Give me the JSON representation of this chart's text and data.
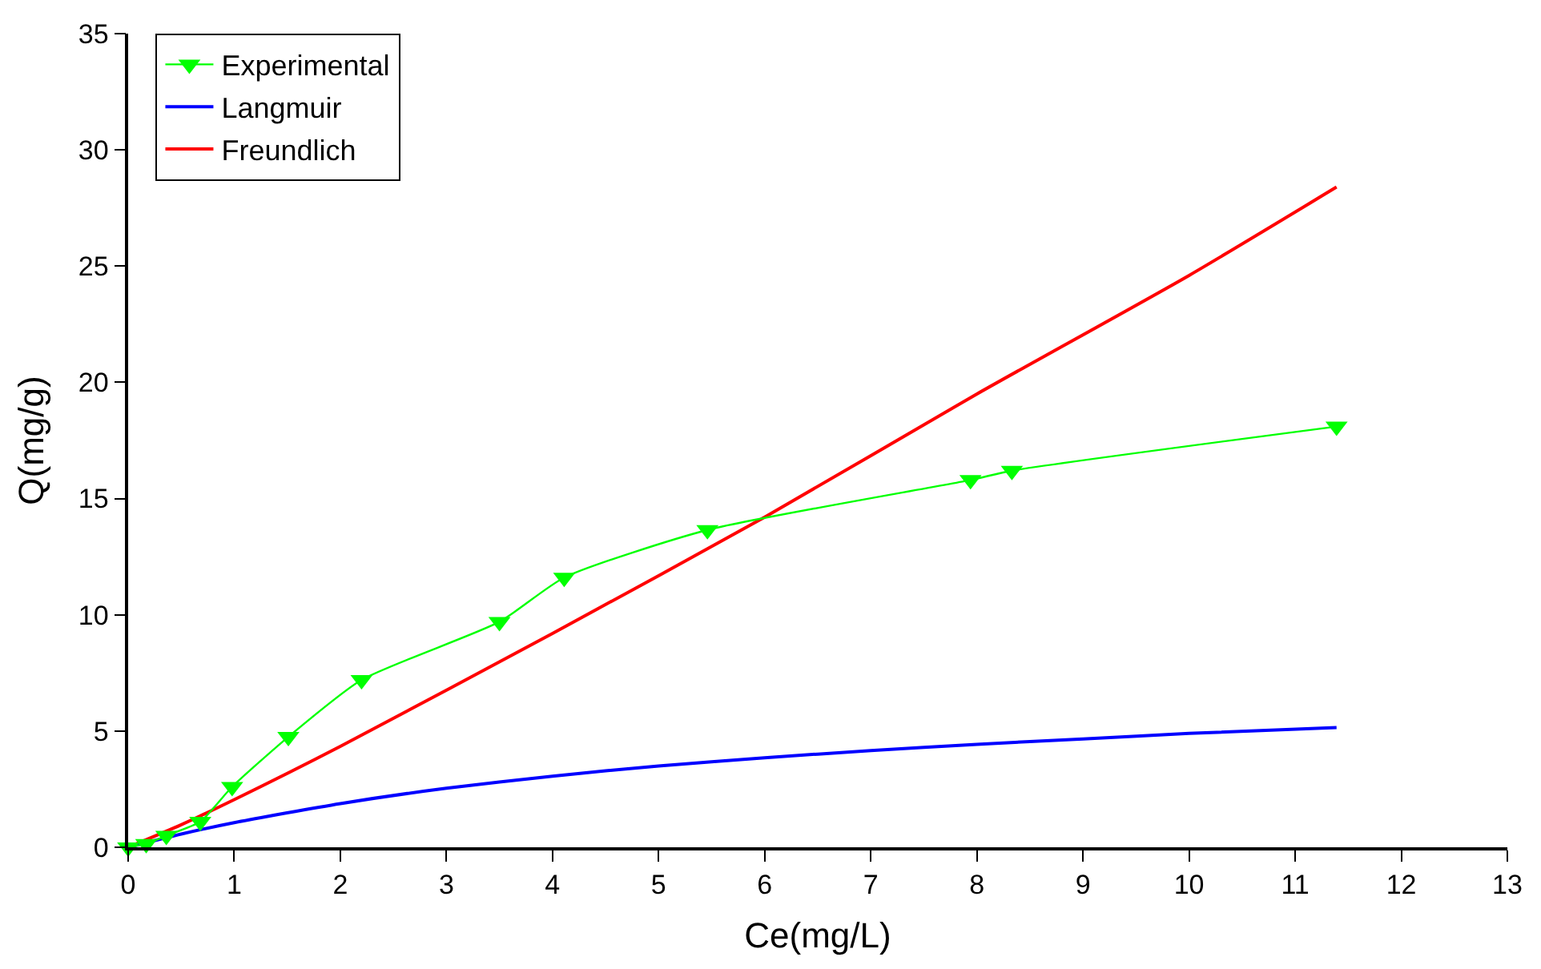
{
  "chart_data": {
    "type": "line",
    "xlabel": "Ce(mg/L)",
    "ylabel": "Q(mg/g)",
    "xlim": [
      0,
      13
    ],
    "xticks": [
      0,
      1,
      2,
      3,
      4,
      5,
      6,
      7,
      8,
      9,
      10,
      11,
      12,
      13
    ],
    "ylim": [
      0,
      35
    ],
    "yticks": [
      0,
      5,
      10,
      15,
      20,
      25,
      30,
      35
    ],
    "legend": "top left",
    "series": [
      {
        "name": "Experimental",
        "color": "#00ff00",
        "marker": "triangle",
        "x": [
          0,
          0.17,
          0.36,
          0.68,
          0.98,
          1.51,
          2.2,
          3.5,
          4.11,
          5.46,
          7.94,
          8.33,
          11.39
        ],
        "values": [
          0,
          0.15,
          0.5,
          1.1,
          2.6,
          4.75,
          7.2,
          9.7,
          11.6,
          13.65,
          15.8,
          16.2,
          18.1
        ]
      },
      {
        "name": "Langmuir",
        "color": "#0000ff",
        "marker": "none",
        "x": [
          0,
          0.5,
          1,
          2,
          3,
          4,
          5,
          6,
          7,
          8,
          9,
          10,
          11.39
        ],
        "values": [
          0,
          0.57,
          1.06,
          1.88,
          2.54,
          3.06,
          3.5,
          3.85,
          4.16,
          4.43,
          4.66,
          4.9,
          5.15
        ]
      },
      {
        "name": "Freundlich",
        "color": "#ff0000",
        "marker": "none",
        "x": [
          0,
          0.5,
          1,
          2,
          4,
          6,
          8,
          10,
          11.39
        ],
        "values": [
          0,
          0.97,
          2.05,
          4.34,
          9.2,
          14.2,
          19.5,
          24.6,
          28.4
        ]
      }
    ]
  }
}
